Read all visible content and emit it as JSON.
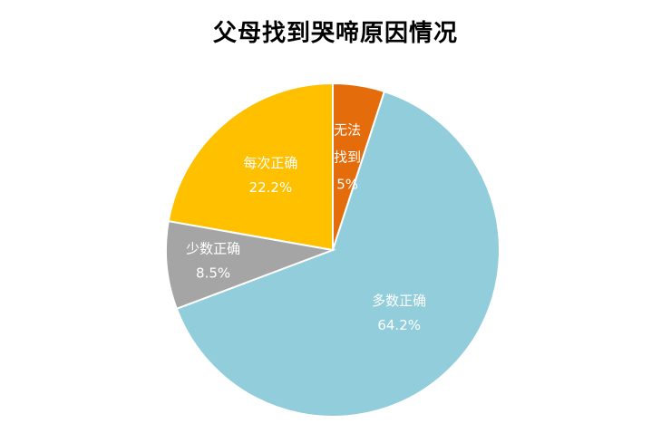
{
  "chart_data": {
    "type": "pie",
    "title": "父母找到哭啼原因情况",
    "slices": [
      {
        "label_lines": [
          "无法",
          "找到"
        ],
        "value_text": "5%",
        "value": 5.0,
        "color": "#E46C0A"
      },
      {
        "label_lines": [
          "多数正确"
        ],
        "value_text": "64.2%",
        "value": 64.2,
        "color": "#92CDDC"
      },
      {
        "label_lines": [
          "少数正确"
        ],
        "value_text": "8.5%",
        "value": 8.5,
        "color": "#A5A5A5"
      },
      {
        "label_lines": [
          "每次正确"
        ],
        "value_text": "22.2%",
        "value": 22.2,
        "color": "#FFC000"
      }
    ],
    "start_angle": "12 o'clock",
    "direction": "clockwise",
    "legend": "none",
    "data_labels": "inside"
  }
}
